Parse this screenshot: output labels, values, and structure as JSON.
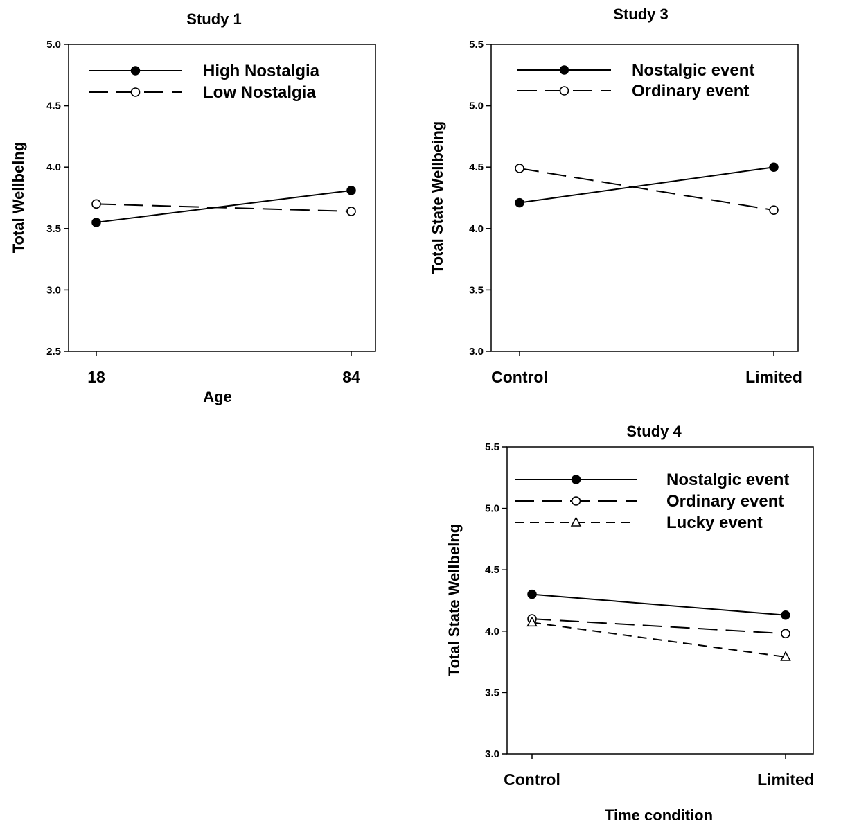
{
  "chart_data": [
    {
      "type": "line",
      "title": "Study 1",
      "xlabel": "Age",
      "ylabel": "Total Wellbelng",
      "categories": [
        "18",
        "84"
      ],
      "ylim": [
        2.5,
        5.0
      ],
      "yticks": [
        "2.5",
        "3.0",
        "3.5",
        "4.0",
        "4.5",
        "5.0"
      ],
      "legend_position": "top-left",
      "grid": false,
      "series": [
        {
          "name": "High Nostalgia",
          "values": [
            3.55,
            3.81
          ],
          "style": "solid",
          "marker": "filled-circle"
        },
        {
          "name": "Low Nostalgia",
          "values": [
            3.7,
            3.64
          ],
          "style": "long-dash",
          "marker": "open-circle"
        }
      ]
    },
    {
      "type": "line",
      "title": "Study 3",
      "xlabel": "",
      "ylabel": "Total State Wellbeing",
      "categories": [
        "Control",
        "Limited"
      ],
      "ylim": [
        3.0,
        5.5
      ],
      "yticks": [
        "3.0",
        "3.5",
        "4.0",
        "4.5",
        "5.0",
        "5.5"
      ],
      "legend_position": "top-left",
      "grid": false,
      "series": [
        {
          "name": "Nostalgic event",
          "values": [
            4.21,
            4.5
          ],
          "style": "solid",
          "marker": "filled-circle"
        },
        {
          "name": "Ordinary event",
          "values": [
            4.49,
            4.15
          ],
          "style": "long-dash",
          "marker": "open-circle"
        }
      ]
    },
    {
      "type": "line",
      "title": "Study 4",
      "xlabel": "Time condition",
      "ylabel": "Total State Wellbelng",
      "categories": [
        "Control",
        "Limited"
      ],
      "ylim": [
        3.0,
        5.5
      ],
      "yticks": [
        "3.0",
        "3.5",
        "4.0",
        "4.5",
        "5.0",
        "5.5"
      ],
      "legend_position": "top-left",
      "grid": false,
      "series": [
        {
          "name": "Nostalgic event",
          "values": [
            4.3,
            4.13
          ],
          "style": "solid",
          "marker": "filled-circle"
        },
        {
          "name": "Ordinary event",
          "values": [
            4.1,
            3.98
          ],
          "style": "long-dash",
          "marker": "open-circle"
        },
        {
          "name": "Lucky event",
          "values": [
            4.07,
            3.79
          ],
          "style": "short-dash",
          "marker": "open-triangle"
        }
      ]
    }
  ]
}
